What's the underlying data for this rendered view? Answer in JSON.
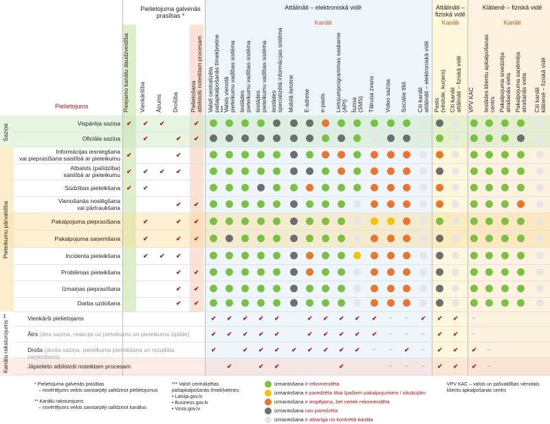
{
  "headers": {
    "prasibas_title": "Pielietojuma galvenās prasības *",
    "attalinati_elek_title": "Attālināti – elektroniskā vidē",
    "attalinati_fiz_title": "Attālināti – fiziskā vidē",
    "klatiene_title": "Klātienē – fiziskā vidē",
    "kanali": "Kanāli",
    "pielietojums": "Pielietojums"
  },
  "columns": {
    "prasibas": [
      "Pieejamo kanālu daudzveidība",
      "Vienkāršība",
      "Ātrums",
      "Drošība",
      "Pielietošana\natbilstoši noteiktam procesam"
    ],
    "elek": [
      "Valstī centralizēta\npašapkalpošanās tīmekļvietne ***",
      "Valsts vienotā\npieteikumu vadības sistēma",
      "Iestādes\npieteikumu vadības sistēma",
      "Iestādes\npieteikumu vadības sistēma",
      "Iestādes\nspecializētā informācijas sistēma",
      "Mobilā lietotne",
      "E-adrese",
      "e-pasts",
      "Lietojumprogrammas saskarne\n(API)",
      "Īsziņa\n(SMS)",
      "Tālruņa zvans",
      "Video saziņa",
      "Sociālie tīkli",
      "Citi kanāli\nattālināti – elektroniskā vidē"
    ],
    "fiz": [
      "Pasts\n(vēstule, kurjers)",
      "Citi kanāli\nattālināti – fiziskā vidē"
    ],
    "klat": [
      "VPV KAC",
      "Iestādes klientu apkalpošanas\ncentrs",
      "Pakalpojuma sniedzēja\natrašanās vieta",
      "Pakalpojuma saņēmēja\natrašanās vieta",
      "Citi kanāli\nklātienē – fiziskā vidē"
    ]
  },
  "groups": {
    "saziņa": "Saziņa",
    "parvaldiba": "Pieteikumu pārvaldība",
    "raksturojums": "Kanāla raksturojums **"
  },
  "rows": [
    {
      "label": "Vispārēja saziņa"
    },
    {
      "label": "Oficiāla saziņa"
    },
    {
      "label": "Informācijas iesniegšana\nvai pieprasīšana saistībā ar pieteikumu"
    },
    {
      "label": "Atbalsts (palīdzība)\nsaistībā ar pieteikumu"
    },
    {
      "label": "Sūdzības pieteikšana"
    },
    {
      "label": "Vienošanās noslēgšana\nvai pārtraukšana"
    },
    {
      "label": "Pakalpojuma pieprasīšana"
    },
    {
      "label": "Pakalpojuma saņemšana"
    },
    {
      "label": "Incidenta pieteikšana"
    },
    {
      "label": "Problēmas pieteikšana"
    },
    {
      "label": "Izmaiņas pieprasīšana"
    },
    {
      "label": "Darba uzdošana"
    }
  ],
  "char_rows": [
    {
      "label": "Vienkārši pielietojams",
      "note": ""
    },
    {
      "label": "Ātrs",
      "note": "(ātra saziņa, reakcija uz pieteikumu un pieteikuma izpilde)"
    },
    {
      "label": "Drošs",
      "note": "(droša saziņa, pieteikuma pieteikšana un rezultāta saņemšana)"
    },
    {
      "label": "Jāpielieto atbilstoši noteiktam procesam",
      "note": ""
    }
  ],
  "colors": {
    "G": "#7ac143",
    "O": "#e8762d",
    "Y": "#f5c400",
    "D": "#6d6e71",
    "E": "#e6e6e6"
  },
  "matrix_checks": [
    "11101",
    "01011",
    "10010",
    "11110",
    "11000",
    "00011",
    "01011",
    "01011",
    "01110",
    "00011",
    "00011",
    "00011"
  ],
  "matrix_dots": [
    "GGGGDDDOGGGGGE|DE|GGGGE",
    "DDDDDDDGDGEDDE|GE|GGGDE",
    "GGGGGDGOOGOOOE|OE|GGGGE",
    "GGGGGDDGOGOOOE|DE|GGGGE",
    "GGGDGGOGGGOOOE|OE|GGGGE",
    "GGGGGDGGGEOOOE|OE|GGGOE",
    "GGGGGDGGGEYYOE|GE|GGGGE",
    "GDGGGDGGGEOOOE|DE|GGGGE",
    "GGGGGDOGGYOOOE|DE|GGGGE",
    "GGGGGDOGGEOOOE|DE|GGGGE",
    "GGGGGDGGGEOOOE|DE|GGGGE",
    "GGGGGDGGGEOOOE|DE|GGGGE"
  ],
  "char_checks": [
    "11111011111-|-|111-",
    "11111011111-|--|11-",
    "1011111111--|1-|111-",
    "01011000100-|--|111-"
  ],
  "legend": {
    "notes_left": [
      "* Pielietojuma galvenās prasības",
      "– novērtējums veikts savstarpēji salīdzinot pielietojumus",
      "** Kanālu raksturojums",
      "– novērtējums veikts savstarpēji salīdzinot kanālus"
    ],
    "notes_mid_title": "*** Valstī centralizētas pašapkalpošanās tīmekļvietnes:",
    "notes_mid_items": [
      "Latvija.gov.lv",
      "Business.gov.lv",
      "Virsis.gov.lv"
    ],
    "items": [
      {
        "a": "izmantošana",
        "b": "ir rekomendēta"
      },
      {
        "a": "izmantošana",
        "b": "ir paredzēta tikai īpašiem pakalpojumiem / situācijām"
      },
      {
        "a": "izmantošana",
        "b": "ir iespējama, bet netiek rekomendēta"
      },
      {
        "a": "izmantošana",
        "b": "nav paredzēta"
      },
      {
        "a": "izmantošana",
        "b": "ir atkarīga no konkrētā kanāla"
      }
    ],
    "note_right": "VPV KAC – valsts un pašvaldības vienotais klientu apkalpošanas centrs"
  }
}
